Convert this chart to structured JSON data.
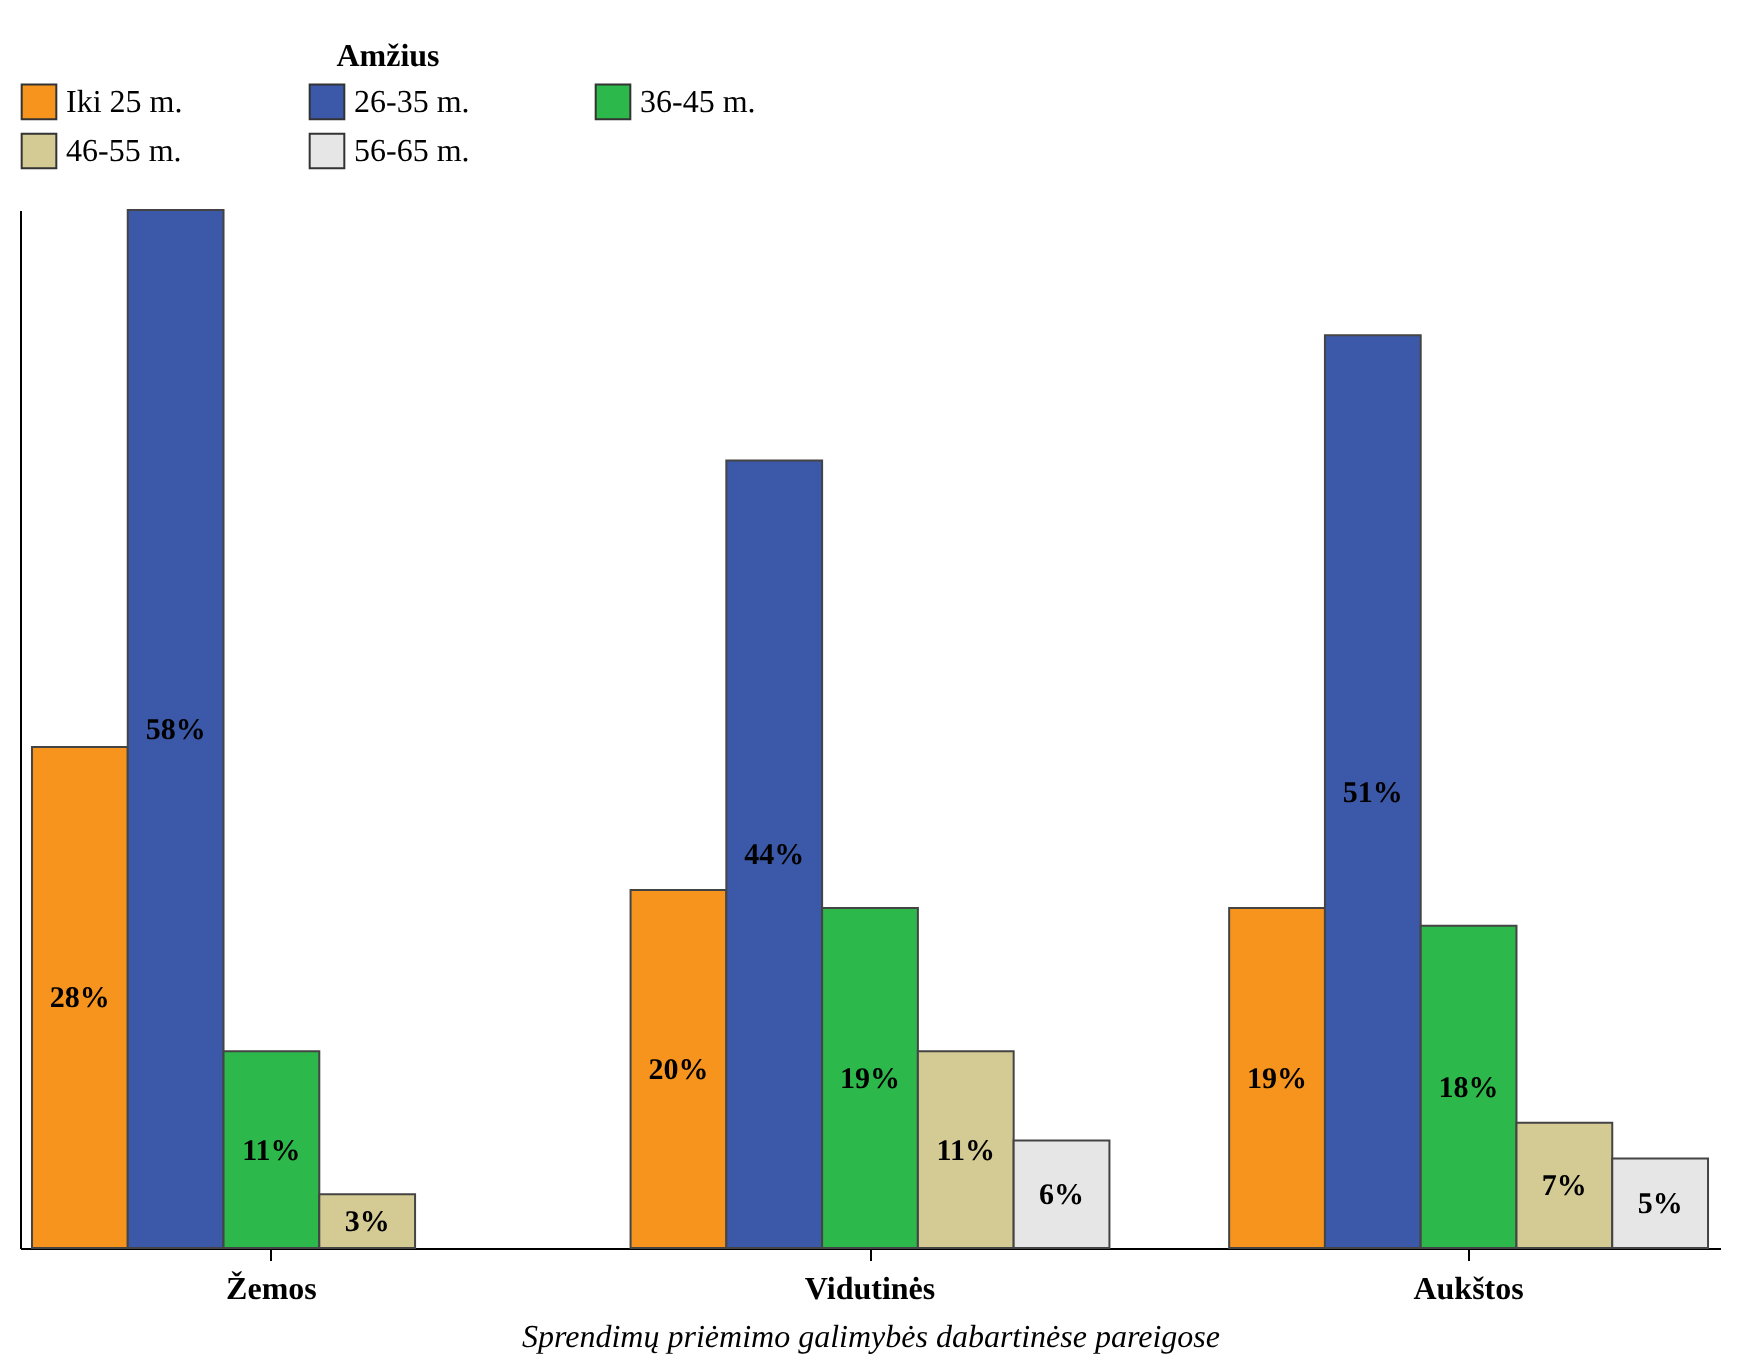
{
  "chart_data": {
    "type": "bar",
    "xlabel": "Sprendimų priėmimo galimybės dabartinėse pareigose",
    "legend_title": "Amžius",
    "legend": "top",
    "categories": [
      "Žemos",
      "Vidutinės",
      "Aukštos"
    ],
    "series": [
      {
        "name": "Iki 25 m.",
        "color": "#f7941d",
        "values": [
          28,
          20,
          19
        ],
        "value_labels": [
          "28%",
          "20%",
          "19%"
        ]
      },
      {
        "name": "26-35 m.",
        "color": "#3c58a8",
        "values": [
          58,
          44,
          51
        ],
        "value_labels": [
          "58%",
          "44%",
          "51%"
        ]
      },
      {
        "name": "36-45 m.",
        "color": "#2db84b",
        "values": [
          11,
          19,
          18
        ],
        "value_labels": [
          "11%",
          "19%",
          "18%"
        ]
      },
      {
        "name": "46-55 m.",
        "color": "#d4cb94",
        "values": [
          3,
          11,
          7
        ],
        "value_labels": [
          "3%",
          "11%",
          "7%"
        ]
      },
      {
        "name": "56-65 m.",
        "color": "#e6e6e6",
        "values": [
          null,
          6,
          5
        ],
        "value_labels": [
          null,
          "6%",
          "5%"
        ]
      }
    ]
  }
}
